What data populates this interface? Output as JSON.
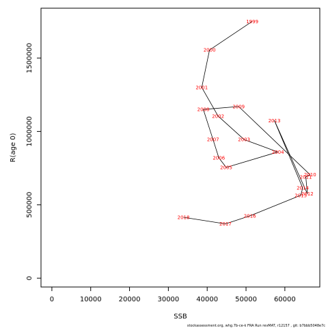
{
  "chart_data": {
    "type": "line",
    "xlabel": "SSB",
    "ylabel": "R(age 0)",
    "xlim": [
      -2800,
      69000
    ],
    "ylim": [
      -60000,
      1840000
    ],
    "x_ticks": [
      0,
      10000,
      20000,
      30000,
      40000,
      50000,
      60000
    ],
    "y_ticks": [
      0,
      500000,
      1000000,
      1500000
    ],
    "grid": false,
    "line_color": "#000000",
    "label_color": "#ff0000",
    "points": [
      {
        "label": "1999",
        "x": 51600,
        "y": 1750000
      },
      {
        "label": "2000",
        "x": 40600,
        "y": 1555000
      },
      {
        "label": "2001",
        "x": 38600,
        "y": 1300000
      },
      {
        "label": "2002",
        "x": 42800,
        "y": 1105000
      },
      {
        "label": "2003",
        "x": 49500,
        "y": 945000
      },
      {
        "label": "2004",
        "x": 58200,
        "y": 860000
      },
      {
        "label": "2005",
        "x": 44900,
        "y": 755000
      },
      {
        "label": "2006",
        "x": 43000,
        "y": 820000
      },
      {
        "label": "2007",
        "x": 41500,
        "y": 945000
      },
      {
        "label": "2008",
        "x": 39000,
        "y": 1150000
      },
      {
        "label": "2009",
        "x": 48100,
        "y": 1170000
      },
      {
        "label": "2010",
        "x": 66500,
        "y": 705000
      },
      {
        "label": "2011",
        "x": 65400,
        "y": 690000
      },
      {
        "label": "2012",
        "x": 65800,
        "y": 575000
      },
      {
        "label": "2013",
        "x": 57300,
        "y": 1075000
      },
      {
        "label": "2014",
        "x": 64600,
        "y": 615000
      },
      {
        "label": "2015",
        "x": 64100,
        "y": 565000
      },
      {
        "label": "2016",
        "x": 51000,
        "y": 425000
      },
      {
        "label": "2017",
        "x": 44700,
        "y": 370000
      },
      {
        "label": "2018",
        "x": 33900,
        "y": 415000
      }
    ]
  },
  "footer": "stockassessment.org, whg.7b-ce-k  FRA  Run  revMAT,  r12157 ,  git: b7bbb5048e7c"
}
